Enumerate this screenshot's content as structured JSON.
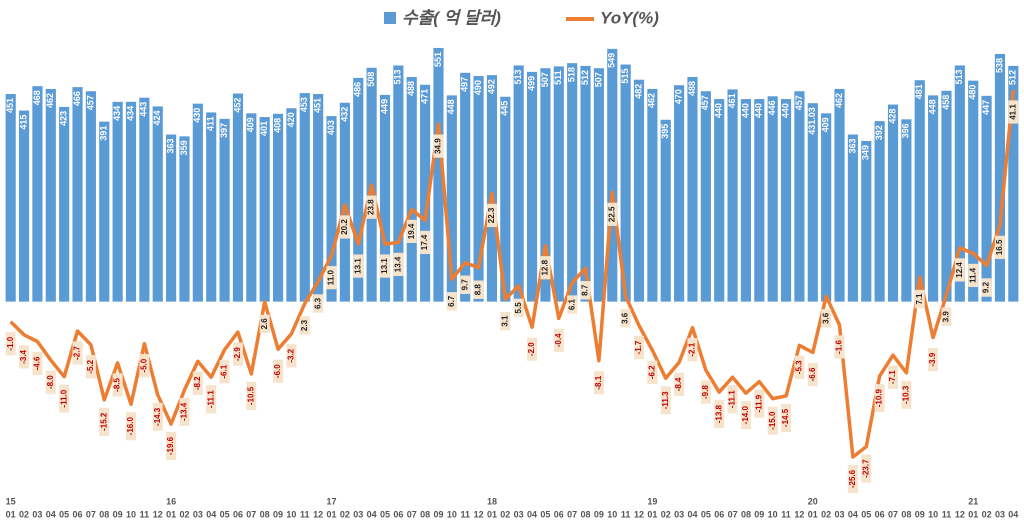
{
  "chart_data": {
    "type": "bar-line",
    "legend_position": "top",
    "categories": [
      "01",
      "02",
      "03",
      "04",
      "05",
      "06",
      "07",
      "08",
      "09",
      "10",
      "11",
      "12",
      "01",
      "02",
      "03",
      "04",
      "05",
      "06",
      "07",
      "08",
      "09",
      "10",
      "11",
      "12",
      "01",
      "02",
      "03",
      "04",
      "05",
      "06",
      "07",
      "08",
      "09",
      "10",
      "11",
      "12",
      "01",
      "02",
      "03",
      "04",
      "05",
      "06",
      "07",
      "08",
      "09",
      "10",
      "11",
      "12",
      "01",
      "02",
      "03",
      "04",
      "05",
      "06",
      "07",
      "08",
      "09",
      "10",
      "11",
      "12",
      "01",
      "02",
      "03",
      "04",
      "05",
      "06",
      "07",
      "08",
      "09",
      "10",
      "11",
      "12",
      "01",
      "02",
      "03",
      "04"
    ],
    "year_labels": [
      "15",
      null,
      null,
      null,
      null,
      null,
      null,
      null,
      null,
      null,
      null,
      null,
      "16",
      null,
      null,
      null,
      null,
      null,
      null,
      null,
      null,
      null,
      null,
      null,
      "17",
      null,
      null,
      null,
      null,
      null,
      null,
      null,
      null,
      null,
      null,
      null,
      "18",
      null,
      null,
      null,
      null,
      null,
      null,
      null,
      null,
      null,
      null,
      null,
      "19",
      null,
      null,
      null,
      null,
      null,
      null,
      null,
      null,
      null,
      null,
      null,
      "20",
      null,
      null,
      null,
      null,
      null,
      null,
      null,
      null,
      null,
      null,
      null,
      "21",
      null,
      null,
      null
    ],
    "ylim": [
      -420,
      590
    ],
    "y2lim": [
      -32.5,
      52
    ],
    "series": [
      {
        "name": "수출( 억 달러)",
        "type": "bar",
        "color": "#5b9bd5",
        "values": [
          451,
          415,
          468,
          462,
          423,
          466,
          457,
          391,
          434,
          434,
          443,
          424,
          363,
          359,
          430,
          411,
          397,
          452,
          409,
          401,
          408,
          420,
          453,
          451,
          403,
          432,
          486,
          508,
          449,
          513,
          488,
          471,
          551,
          448,
          497,
          490,
          492,
          445,
          513,
          499,
          507,
          511,
          518,
          512,
          507,
          549,
          515,
          482,
          462,
          395,
          470,
          488,
          457,
          440,
          461,
          440,
          440,
          446,
          440,
          457,
          431.03,
          409,
          462,
          363,
          349,
          392,
          428,
          396,
          481,
          448,
          458,
          513,
          480,
          447,
          538,
          512
        ]
      },
      {
        "name": "YoY(%)",
        "type": "line",
        "axis": "y2",
        "color": "#ed7d31",
        "values": [
          -1.0,
          -3.4,
          -4.6,
          -8.0,
          -11.0,
          -2.7,
          -5.2,
          -15.2,
          -8.5,
          -16.0,
          -5.0,
          -14.3,
          -19.6,
          -13.4,
          -8.2,
          -11.1,
          -6.1,
          -2.9,
          -10.5,
          2.6,
          -6.0,
          -3.2,
          2.3,
          6.3,
          11.0,
          20.2,
          13.1,
          23.8,
          13.1,
          13.4,
          19.4,
          17.4,
          34.9,
          6.7,
          9.7,
          8.8,
          22.3,
          3.1,
          5.5,
          -2.0,
          12.8,
          -0.4,
          6.1,
          8.7,
          -8.1,
          22.5,
          3.6,
          -1.7,
          -6.2,
          -11.3,
          -8.4,
          -2.1,
          -9.8,
          -13.8,
          -11.1,
          -14.0,
          -11.9,
          -15.0,
          -14.5,
          -5.3,
          -6.6,
          3.6,
          -1.6,
          -25.6,
          -23.7,
          -10.9,
          -7.1,
          -10.3,
          7.1,
          -3.9,
          3.9,
          12.4,
          11.4,
          9.2,
          16.5,
          41.1
        ],
        "value_labels": [
          "-1.0",
          "-3.4",
          "-4.6",
          "-8.0",
          "-11.0",
          "-2.7",
          "-5.2",
          "-15.2",
          "-8.5",
          "-16.0",
          "-5.0",
          "-14.3",
          "-19.6",
          "-13.4",
          "-8.2",
          "-11.1",
          "-6.1",
          "-2.9",
          "-10.5",
          "2.6",
          "-6.0",
          "-3.2",
          "2.3",
          "6.3",
          "11.0",
          "20.2",
          "13.1",
          "23.8",
          "13.1",
          "13.4",
          "19.4",
          "17.4",
          "34.9",
          "6.7",
          "9.7",
          "8.8",
          "22.3",
          "3.1",
          "5.5",
          "-2.0",
          "12.8",
          "-0.4",
          "6.1",
          "8.7",
          "-8.1",
          "22.5",
          "3.6",
          "-1.7",
          "-6.2",
          "-11.3",
          "-8.4",
          "-2.1",
          "-9.8",
          "-13.8",
          "-11.1",
          "-14.0",
          "-11.9",
          "-15.0",
          "-14.5",
          "-5.3",
          "-6.6",
          "3.6",
          "-1.6",
          "-25.6",
          "-23.7",
          "-10.9",
          "-7.1",
          "-10.3",
          "7.1",
          "-3.9",
          "3.9",
          "12.4",
          "11.4",
          "9.2",
          "16.5",
          "41.1"
        ]
      }
    ]
  }
}
